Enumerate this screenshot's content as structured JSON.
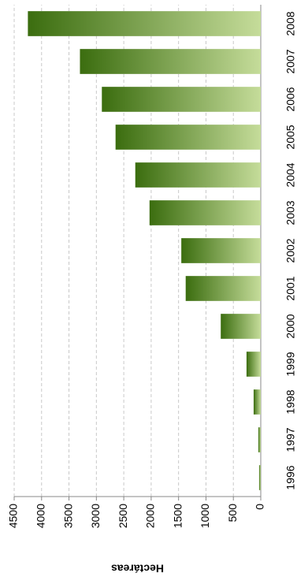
{
  "chart_data": {
    "type": "bar",
    "y_label": "Hectáreas",
    "categories": [
      "1996",
      "1997",
      "1998",
      "1999",
      "2000",
      "2001",
      "2002",
      "2003",
      "2004",
      "2005",
      "2006",
      "2007",
      "2008"
    ],
    "values": [
      30,
      45,
      130,
      260,
      730,
      1370,
      1450,
      2030,
      2290,
      2650,
      2900,
      3300,
      4250
    ],
    "color": [
      "#c5dc9a",
      "#3b6d0f"
    ],
    "ylim": [
      0,
      4500
    ],
    "yticks": [
      0,
      500,
      1000,
      1500,
      2000,
      2500,
      3000,
      3500,
      4000,
      4500
    ],
    "grid": true
  }
}
